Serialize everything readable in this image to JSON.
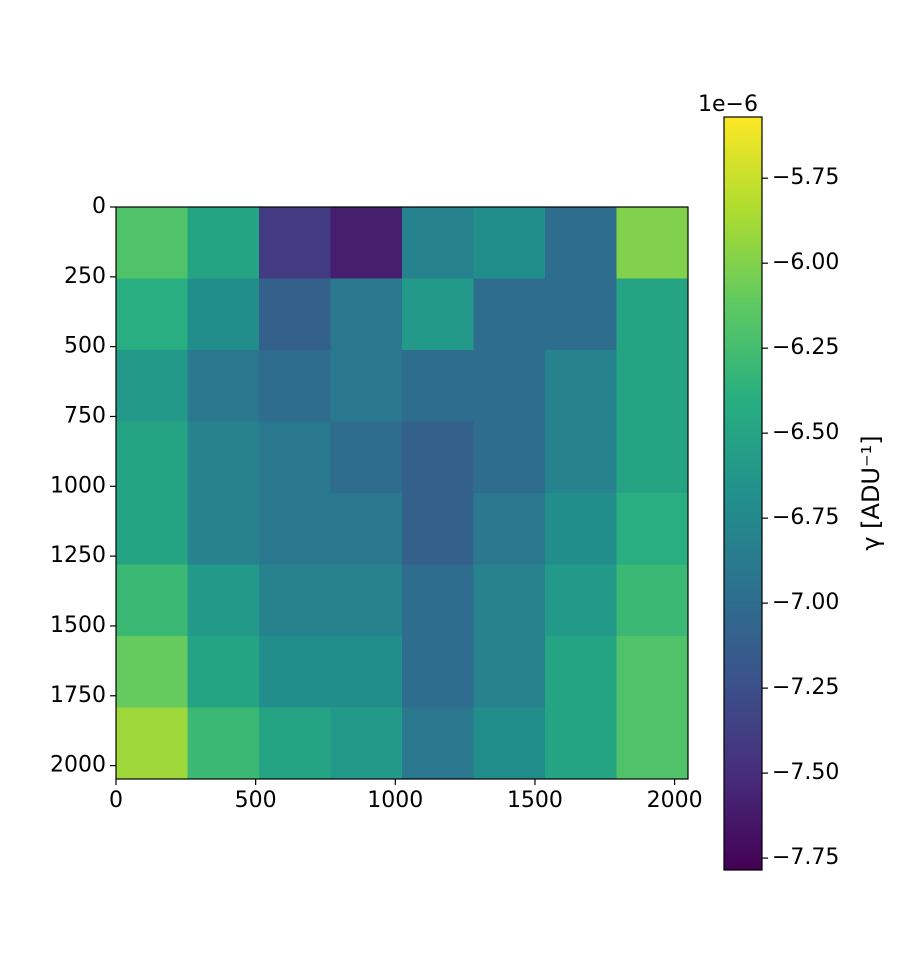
{
  "chart_data": {
    "type": "heatmap",
    "colormap": "viridis",
    "xlim": [
      0,
      2048
    ],
    "ylim": [
      2048,
      0
    ],
    "xticks": [
      0,
      500,
      1000,
      1500,
      2000
    ],
    "yticks": [
      0,
      250,
      500,
      750,
      1000,
      1250,
      1500,
      1750,
      2000
    ],
    "z": [
      [
        -6.2,
        -6.5,
        -7.4,
        -7.6,
        -6.8,
        -6.7,
        -7.0,
        -6.0
      ],
      [
        -6.4,
        -6.7,
        -7.1,
        -6.9,
        -6.6,
        -7.0,
        -7.0,
        -6.5
      ],
      [
        -6.6,
        -6.9,
        -7.0,
        -6.9,
        -7.0,
        -7.0,
        -6.8,
        -6.5
      ],
      [
        -6.5,
        -6.8,
        -6.9,
        -7.0,
        -7.1,
        -7.0,
        -6.8,
        -6.5
      ],
      [
        -6.5,
        -6.8,
        -6.9,
        -6.9,
        -7.1,
        -6.9,
        -6.7,
        -6.4
      ],
      [
        -6.3,
        -6.6,
        -6.8,
        -6.8,
        -7.0,
        -6.8,
        -6.6,
        -6.3
      ],
      [
        -6.1,
        -6.5,
        -6.7,
        -6.7,
        -7.0,
        -6.8,
        -6.5,
        -6.2
      ],
      [
        -5.9,
        -6.3,
        -6.5,
        -6.6,
        -6.9,
        -6.7,
        -6.5,
        -6.2
      ]
    ],
    "colorbar": {
      "label": "γ [ADU⁻¹]",
      "offset_text": "1e−6",
      "clim": [
        -7.785,
        -5.57
      ],
      "ticks": [
        {
          "value": -5.75,
          "label": "−5.75"
        },
        {
          "value": -6.0,
          "label": "−6.00"
        },
        {
          "value": -6.25,
          "label": "−6.25"
        },
        {
          "value": -6.5,
          "label": "−6.50"
        },
        {
          "value": -6.75,
          "label": "−6.75"
        },
        {
          "value": -7.0,
          "label": "−7.00"
        },
        {
          "value": -7.25,
          "label": "−7.25"
        },
        {
          "value": -7.5,
          "label": "−7.50"
        },
        {
          "value": -7.75,
          "label": "−7.75"
        }
      ]
    }
  }
}
